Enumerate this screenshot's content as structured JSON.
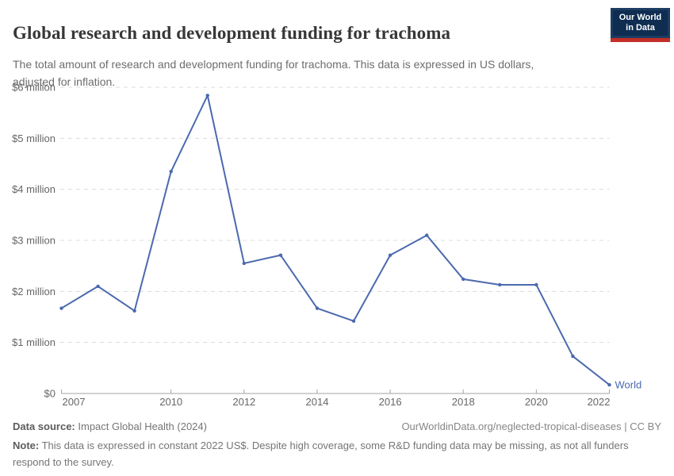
{
  "header": {
    "title": "Global research and development funding for trachoma",
    "subtitle": "The total amount of research and development funding for trachoma. This data is expressed in US dollars, adjusted for inflation.",
    "logo": {
      "line1": "Our World",
      "line2": "in Data"
    }
  },
  "chart_data": {
    "type": "line",
    "title": "Global research and development funding for trachoma",
    "unit": "constant 2022 US$",
    "x": [
      2007,
      2008,
      2009,
      2010,
      2011,
      2012,
      2013,
      2014,
      2015,
      2016,
      2017,
      2018,
      2019,
      2020,
      2021,
      2022
    ],
    "series": [
      {
        "name": "World",
        "color": "#4b69ae",
        "values_million_usd": [
          1.67,
          2.1,
          1.62,
          4.35,
          5.84,
          2.55,
          2.71,
          1.67,
          1.42,
          2.71,
          3.1,
          2.24,
          2.13,
          2.13,
          0.73,
          0.17
        ]
      }
    ],
    "xlim": [
      2007,
      2022
    ],
    "ylim": [
      0,
      6
    ],
    "xticks": [
      2007,
      2010,
      2012,
      2014,
      2016,
      2018,
      2020,
      2022
    ],
    "yticks": [
      {
        "value": 0,
        "label": "$0"
      },
      {
        "value": 1,
        "label": "$1 million"
      },
      {
        "value": 2,
        "label": "$2 million"
      },
      {
        "value": 3,
        "label": "$3 million"
      },
      {
        "value": 4,
        "label": "$4 million"
      },
      {
        "value": 5,
        "label": "$5 million"
      },
      {
        "value": 6,
        "label": "$6 million"
      }
    ],
    "grid": "horizontal-dashed",
    "legend": "line-end-label"
  },
  "colors": {
    "line": "#4b69ae",
    "grid": "#dcdcdc",
    "axis": "#a3a3a3",
    "tick_label": "#666666",
    "logo_bg": "#1d3d63",
    "logo_accent": "#c32e27"
  },
  "footer": {
    "data_source_label": "Data source:",
    "data_source_value": "Impact Global Health (2024)",
    "attribution": "OurWorldinData.org/neglected-tropical-diseases | CC BY",
    "note_label": "Note:",
    "note_value": "This data is expressed in constant 2022 US$. Despite high coverage, some R&D funding data may be missing, as not all funders respond to the survey."
  }
}
